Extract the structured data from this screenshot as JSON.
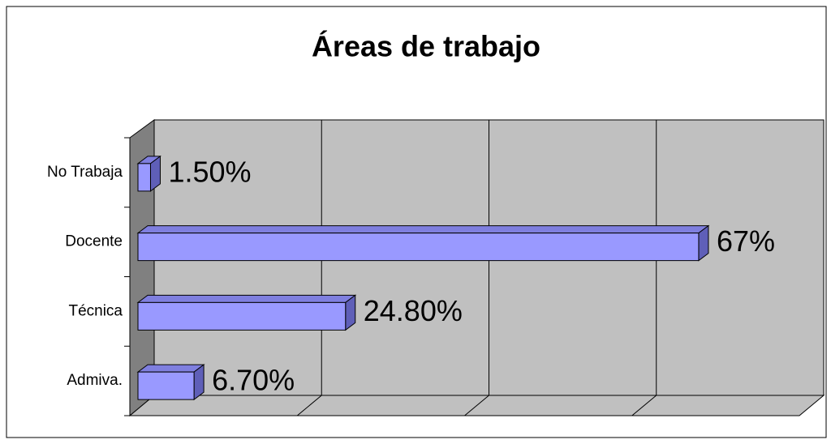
{
  "chart_data": {
    "type": "bar3d",
    "title": "Áreas de trabajo",
    "categories": [
      "Admiva.",
      "Técnica",
      "Docente",
      "No Trabaja"
    ],
    "values": [
      6.7,
      24.8,
      67,
      1.5
    ],
    "value_labels": [
      "6.70%",
      "24.80%",
      "67%",
      "1.50%"
    ],
    "color": "#9999ff",
    "xlim": [
      0,
      80
    ],
    "xticks": [
      0,
      20,
      40,
      60,
      80
    ],
    "grid": true
  }
}
